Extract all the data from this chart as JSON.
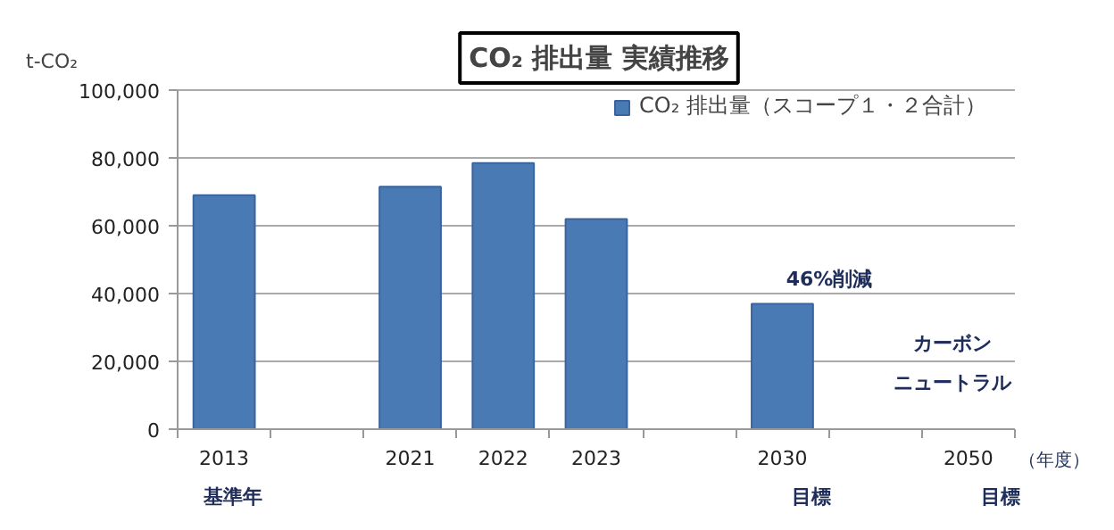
{
  "chart_data": {
    "type": "bar",
    "title": "CO₂ 排出量 実績推移",
    "ylabel": "t-CO₂",
    "xlabel": "（年度）",
    "categories": [
      "2013",
      null,
      "2021",
      "2022",
      "2023",
      null,
      "2030",
      null,
      "2050"
    ],
    "series": [
      {
        "name": "CO₂ 排出量（スコープ１・２合計）",
        "color": "#4a7ab4",
        "values": [
          69000,
          null,
          71500,
          78500,
          62000,
          null,
          37000,
          null,
          null
        ]
      }
    ],
    "ylim": [
      0,
      100000
    ],
    "yticks": [
      0,
      {
        "value": 20000,
        "label": "20,000"
      },
      {
        "value": 40000,
        "label": "40,000"
      },
      {
        "value": 60000,
        "label": "60,000"
      },
      {
        "value": 80000,
        "label": "80,000"
      },
      {
        "value": 100000,
        "label": "100,000"
      }
    ],
    "grid": "y",
    "legend": "top right",
    "annotations": [
      "46%削減",
      "カーボン",
      "ニュートラル",
      "基準年",
      "目標",
      "目標"
    ]
  }
}
